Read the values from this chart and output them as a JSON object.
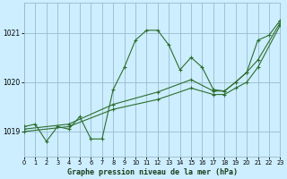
{
  "title": "Graphe pression niveau de la mer (hPa)",
  "bg_color": "#cceeff",
  "grid_color": "#99bbcc",
  "line_color": "#2d6e2d",
  "xlim": [
    0,
    23
  ],
  "ylim": [
    1018.5,
    1021.6
  ],
  "yticks": [
    1019,
    1020,
    1021
  ],
  "xticks": [
    0,
    1,
    2,
    3,
    4,
    5,
    6,
    7,
    8,
    9,
    10,
    11,
    12,
    13,
    14,
    15,
    16,
    17,
    18,
    19,
    20,
    21,
    22,
    23
  ],
  "series1_x": [
    0,
    1,
    2,
    3,
    4,
    5,
    6,
    7,
    8,
    9,
    10,
    11,
    12,
    13,
    14,
    15,
    16,
    17,
    18,
    19,
    20,
    21,
    22,
    23
  ],
  "series1_y": [
    1019.1,
    1019.15,
    1018.8,
    1019.1,
    1019.05,
    1019.3,
    1018.85,
    1018.85,
    1019.85,
    1020.3,
    1020.85,
    1021.05,
    1021.05,
    1020.75,
    1020.25,
    1020.5,
    1020.3,
    1019.85,
    1019.82,
    1020.0,
    1020.2,
    1020.85,
    1020.95,
    1021.25
  ],
  "series2_x": [
    0,
    4,
    8,
    12,
    15,
    17,
    18,
    19,
    20,
    21,
    23
  ],
  "series2_y": [
    1019.05,
    1019.15,
    1019.55,
    1019.8,
    1020.05,
    1019.82,
    1019.82,
    1020.0,
    1020.2,
    1020.45,
    1021.2
  ],
  "series3_x": [
    0,
    4,
    8,
    12,
    15,
    17,
    18,
    19,
    20,
    21,
    23
  ],
  "series3_y": [
    1019.0,
    1019.1,
    1019.45,
    1019.65,
    1019.88,
    1019.75,
    1019.75,
    1019.88,
    1020.0,
    1020.3,
    1021.15
  ]
}
